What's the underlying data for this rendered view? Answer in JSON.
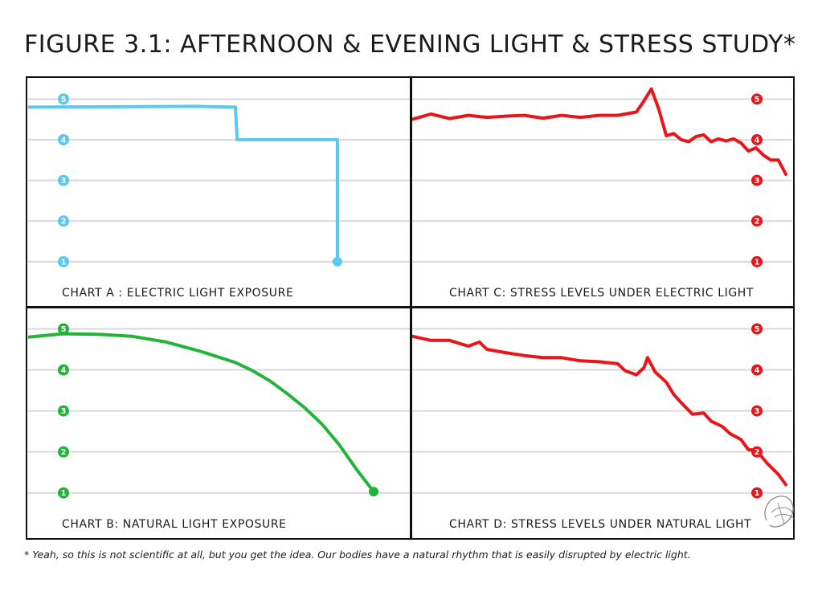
{
  "figure_title": "FIGURE 3.1: AFTERNOON & EVENING LIGHT & STRESS STUDY*",
  "footnote": "* Yeah, so this is not scientific at all, but you get the idea. Our bodies have a natural rhythm that is easily disrupted by electric light.",
  "colors": {
    "chart_a": "#5ac8ef",
    "chart_b": "#22b43a",
    "chart_c": "#e8161b",
    "chart_d": "#e8161b",
    "grid": "#d9d9d9",
    "frame": "#111111"
  },
  "chart_data": [
    {
      "id": "A",
      "type": "line",
      "title": "CHART A : ELECTRIC LIGHT EXPOSURE",
      "xlabel": "",
      "ylabel": "",
      "y_ticks": [
        "1",
        "2",
        "3",
        "4",
        "5"
      ],
      "tick_side": "left",
      "xlim": [
        0,
        100
      ],
      "ylim": [
        0.7,
        5.5
      ],
      "grid": true,
      "x": [
        0,
        49,
        60,
        60.5,
        89,
        89.5,
        89.5
      ],
      "values": [
        4.8,
        4.82,
        4.8,
        4.0,
        4.0,
        4.0,
        1.0
      ],
      "end_marker": true
    },
    {
      "id": "B",
      "type": "line",
      "title": "CHART B: NATURAL LIGHT EXPOSURE",
      "xlabel": "",
      "ylabel": "",
      "y_ticks": [
        "1",
        "2",
        "3",
        "4",
        "5"
      ],
      "tick_side": "left",
      "xlim": [
        0,
        100
      ],
      "ylim": [
        0.7,
        5.5
      ],
      "grid": true,
      "x": [
        0,
        10,
        20,
        30,
        40,
        50,
        60,
        65,
        70,
        75,
        80,
        85,
        90,
        95,
        100
      ],
      "values": [
        4.8,
        4.88,
        4.87,
        4.82,
        4.68,
        4.45,
        4.18,
        3.98,
        3.73,
        3.42,
        3.08,
        2.68,
        2.18,
        1.58,
        1.03
      ],
      "end_marker": true
    },
    {
      "id": "C",
      "type": "line",
      "title": "CHART C: STRESS LEVELS UNDER ELECTRIC LIGHT",
      "xlabel": "",
      "ylabel": "",
      "y_ticks": [
        "1",
        "2",
        "3",
        "4",
        "5"
      ],
      "tick_side": "right",
      "xlim": [
        0,
        100
      ],
      "ylim": [
        0.7,
        5.5
      ],
      "grid": true,
      "x": [
        0,
        5,
        10,
        15,
        20,
        25,
        30,
        35,
        40,
        45,
        50,
        55,
        60,
        62,
        64,
        66,
        68,
        70,
        72,
        74,
        76,
        78,
        80,
        82,
        84,
        86,
        88,
        90,
        92,
        94,
        96,
        98,
        100
      ],
      "values": [
        4.5,
        4.63,
        4.52,
        4.6,
        4.55,
        4.58,
        4.6,
        4.53,
        4.6,
        4.55,
        4.6,
        4.6,
        4.68,
        4.95,
        5.25,
        4.75,
        4.1,
        4.15,
        4.0,
        3.95,
        4.08,
        4.12,
        3.95,
        4.02,
        3.97,
        4.02,
        3.92,
        3.72,
        3.8,
        3.62,
        3.5,
        3.5,
        3.15
      ],
      "end_marker": false
    },
    {
      "id": "D",
      "type": "line",
      "title": "CHART D: STRESS LEVELS UNDER NATURAL LIGHT",
      "xlabel": "",
      "ylabel": "",
      "y_ticks": [
        "1",
        "2",
        "3",
        "4",
        "5"
      ],
      "tick_side": "right",
      "xlim": [
        0,
        100
      ],
      "ylim": [
        0.7,
        5.5
      ],
      "grid": true,
      "x": [
        0,
        5,
        10,
        15,
        18,
        20,
        25,
        30,
        35,
        40,
        45,
        50,
        55,
        57,
        60,
        62,
        63,
        65,
        68,
        70,
        72,
        75,
        78,
        80,
        83,
        85,
        88,
        90,
        92,
        95,
        98,
        100
      ],
      "values": [
        4.82,
        4.72,
        4.72,
        4.58,
        4.68,
        4.5,
        4.42,
        4.35,
        4.3,
        4.3,
        4.22,
        4.2,
        4.15,
        3.98,
        3.88,
        4.05,
        4.3,
        3.95,
        3.7,
        3.4,
        3.2,
        2.92,
        2.95,
        2.75,
        2.62,
        2.45,
        2.3,
        2.05,
        2.05,
        1.72,
        1.45,
        1.2
      ],
      "end_marker": false
    }
  ]
}
